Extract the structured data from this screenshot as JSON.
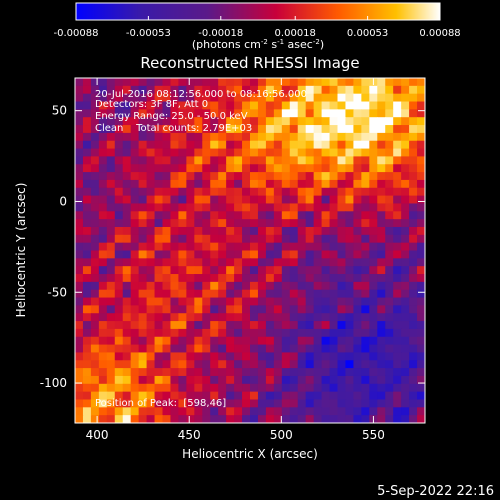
{
  "chart_data": {
    "type": "heatmap",
    "title": "Reconstructed RHESSI Image",
    "xlabel": "Heliocentric X (arcsec)",
    "ylabel": "Heliocentric Y (arcsec)",
    "xlim": [
      388,
      578
    ],
    "ylim": [
      -122,
      68
    ],
    "x_ticks": [
      400,
      450,
      500,
      550
    ],
    "y_ticks": [
      50,
      0,
      -50,
      -100
    ],
    "colorbar": {
      "label_parts": [
        "(photons cm",
        "-2",
        " s",
        "-1",
        " asec",
        "-2",
        ")"
      ],
      "tick_values": [
        -0.00088,
        -0.00053,
        -0.00018,
        0.00018,
        0.00053,
        0.00088
      ],
      "tick_labels": [
        "-0.00088",
        "-0.00053",
        "-0.00018",
        "0.00018",
        "0.00053",
        "0.00088"
      ],
      "range": [
        -0.00088,
        0.00088
      ],
      "colormap": "blue-purple-red-orange-yellow-white"
    },
    "annotations": [
      "20-Jul-2016 08:12:56.000 to 08:16:56.000",
      "Detectors: 3F 8F, Att 0",
      "Energy Range: 25.0 - 50.0 keV",
      "Clean    Total counts: 2.79E+03"
    ],
    "peak_label": "Position of Peak:  [598,46]",
    "grid": false
  },
  "footer": {
    "timestamp": "5-Sep-2022 22:16"
  },
  "colors": {
    "background": "#000000",
    "foreground": "#ffffff",
    "colormap_stops": [
      "#0000ff",
      "#3a1aa8",
      "#5a1a8a",
      "#c8003a",
      "#ff5a00",
      "#ffc000",
      "#ffffff"
    ]
  }
}
